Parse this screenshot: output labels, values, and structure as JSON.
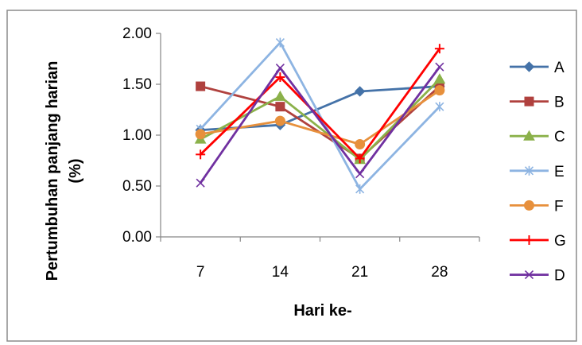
{
  "chart_data": {
    "type": "line",
    "xlabel": "Hari ke-",
    "ylabel_lines": [
      "Pertumbuhan panjang harian",
      "(%)"
    ],
    "categories": [
      "7",
      "14",
      "21",
      "28"
    ],
    "ylim": [
      0,
      2
    ],
    "yticks": [
      "0.00",
      "0.50",
      "1.00",
      "1.50",
      "2.00"
    ],
    "grid": false,
    "legend_position": "right",
    "series": [
      {
        "name": "A",
        "color": "#4472A8",
        "marker": "diamond",
        "values": [
          1.05,
          1.1,
          1.43,
          1.48
        ]
      },
      {
        "name": "B",
        "color": "#B0413E",
        "marker": "square",
        "values": [
          1.48,
          1.28,
          0.77,
          1.48
        ]
      },
      {
        "name": "C",
        "color": "#8BB14A",
        "marker": "triangle",
        "values": [
          0.96,
          1.38,
          0.76,
          1.55
        ]
      },
      {
        "name": "E",
        "color": "#8DB4E2",
        "marker": "asterisk",
        "values": [
          1.06,
          1.91,
          0.47,
          1.28
        ]
      },
      {
        "name": "F",
        "color": "#E7903C",
        "marker": "circle",
        "values": [
          1.01,
          1.14,
          0.91,
          1.44
        ]
      },
      {
        "name": "G",
        "color": "#FF0000",
        "marker": "plus",
        "values": [
          0.81,
          1.57,
          0.77,
          1.85
        ]
      },
      {
        "name": "D",
        "color": "#7030A0",
        "marker": "x",
        "values": [
          0.53,
          1.66,
          0.62,
          1.67
        ]
      }
    ]
  }
}
